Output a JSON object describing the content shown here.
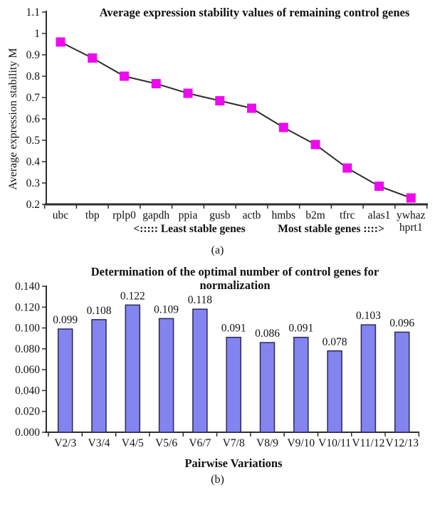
{
  "figure": {
    "background": "#ffffff",
    "text_color": "#111111"
  },
  "chart_data": [
    {
      "type": "line",
      "panel_label": "(a)",
      "title": "Average expression stability values of remaining control genes",
      "ylabel": "Average expression stability M",
      "xlabel": "",
      "categories": [
        "ubc",
        "tbp",
        "rplp0",
        "gapdh",
        "ppia",
        "gusb",
        "actb",
        "hmbs",
        "b2m",
        "tfrc",
        "alas1",
        "ywhaz\nhprt1"
      ],
      "values": [
        0.96,
        0.885,
        0.8,
        0.765,
        0.72,
        0.685,
        0.65,
        0.56,
        0.48,
        0.37,
        0.285,
        0.23
      ],
      "ylim": [
        0.2,
        1.1
      ],
      "ytick_labels": [
        "0.2",
        "0.3",
        "0.4",
        "0.5",
        "0.6",
        "0.7",
        "0.8",
        "0.9",
        "1",
        "1.1"
      ],
      "ytick_values": [
        0.2,
        0.3,
        0.4,
        0.5,
        0.6,
        0.7,
        0.8,
        0.9,
        1.0,
        1.1
      ],
      "grid": false,
      "legend": "none",
      "marker": "square",
      "marker_color": "#ee0aee",
      "line_color": "#2e2e2e",
      "annotations": [
        {
          "text": "<::::: Least stable genes",
          "position": "below-axis-left"
        },
        {
          "text": "Most stable genes ::::>",
          "position": "below-axis-right"
        }
      ],
      "caption": "(a)"
    },
    {
      "type": "bar",
      "panel_label": "(b)",
      "title": "Determination of the optimal number of control genes for normalization",
      "title_lines": [
        "Determination of the optimal number of control genes for",
        "normalization"
      ],
      "xlabel": "Pairwise Variations",
      "categories": [
        "V2/3",
        "V3/4",
        "V4/5",
        "V5/6",
        "V6/7",
        "V7/8",
        "V8/9",
        "V9/10",
        "V10/11",
        "V11/12",
        "V12/13"
      ],
      "values": [
        0.099,
        0.108,
        0.122,
        0.109,
        0.118,
        0.091,
        0.086,
        0.091,
        0.078,
        0.103,
        0.096
      ],
      "value_labels": [
        "0.099",
        "0.108",
        "0.122",
        "0.109",
        "0.118",
        "0.091",
        "0.086",
        "0.091",
        "0.078",
        "0.103",
        "0.096"
      ],
      "ylim": [
        0,
        0.14
      ],
      "ytick_labels": [
        "0.000",
        "0.020",
        "0.040",
        "0.060",
        "0.080",
        "0.100",
        "0.120",
        "0.140"
      ],
      "ytick_values": [
        0,
        0.02,
        0.04,
        0.06,
        0.08,
        0.1,
        0.12,
        0.14
      ],
      "grid": false,
      "legend": "none",
      "bar_color": "#8484f0",
      "bar_border_color": "#2a2a55",
      "caption": "(b)"
    }
  ]
}
